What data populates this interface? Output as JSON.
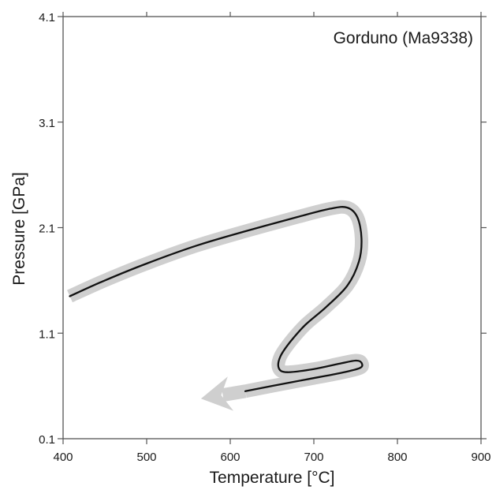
{
  "chart_data": {
    "type": "line",
    "annotation": "Gorduno (Ma9338)",
    "xlabel": "Temperature [°C]",
    "ylabel": "Pressure [GPa]",
    "xlim": [
      400,
      900
    ],
    "ylim": [
      0.1,
      4.1
    ],
    "x_ticks": [
      400,
      500,
      600,
      700,
      800,
      900
    ],
    "x_tick_labels": [
      "400",
      "500",
      "600",
      "700",
      "800",
      "900"
    ],
    "y_ticks": [
      0.1,
      1.1,
      2.1,
      3.1,
      4.1
    ],
    "y_tick_labels": [
      "0.1",
      "1.1",
      "2.1",
      "3.1",
      "4.1"
    ],
    "grid": false,
    "series": [
      {
        "style": "P-T path: black line with grey halo, arrow at end",
        "colors": {
          "line": "#111111",
          "halo": "#cfcfcf"
        },
        "points": [
          {
            "x": 408,
            "y": 1.45
          },
          {
            "x": 450,
            "y": 1.6
          },
          {
            "x": 500,
            "y": 1.76
          },
          {
            "x": 560,
            "y": 1.93
          },
          {
            "x": 620,
            "y": 2.07
          },
          {
            "x": 680,
            "y": 2.2
          },
          {
            "x": 720,
            "y": 2.28
          },
          {
            "x": 740,
            "y": 2.29
          },
          {
            "x": 752,
            "y": 2.2
          },
          {
            "x": 757,
            "y": 2.0
          },
          {
            "x": 754,
            "y": 1.78
          },
          {
            "x": 740,
            "y": 1.55
          },
          {
            "x": 715,
            "y": 1.35
          },
          {
            "x": 690,
            "y": 1.18
          },
          {
            "x": 672,
            "y": 1.02
          },
          {
            "x": 660,
            "y": 0.88
          },
          {
            "x": 658,
            "y": 0.77
          },
          {
            "x": 668,
            "y": 0.73
          },
          {
            "x": 700,
            "y": 0.76
          },
          {
            "x": 730,
            "y": 0.81
          },
          {
            "x": 750,
            "y": 0.84
          },
          {
            "x": 757,
            "y": 0.82
          },
          {
            "x": 755,
            "y": 0.77
          },
          {
            "x": 730,
            "y": 0.72
          },
          {
            "x": 690,
            "y": 0.66
          },
          {
            "x": 650,
            "y": 0.6
          },
          {
            "x": 618,
            "y": 0.55
          }
        ],
        "arrow": {
          "from": {
            "x": 618,
            "y": 0.55
          },
          "to": {
            "x": 565,
            "y": 0.48
          }
        }
      }
    ]
  }
}
